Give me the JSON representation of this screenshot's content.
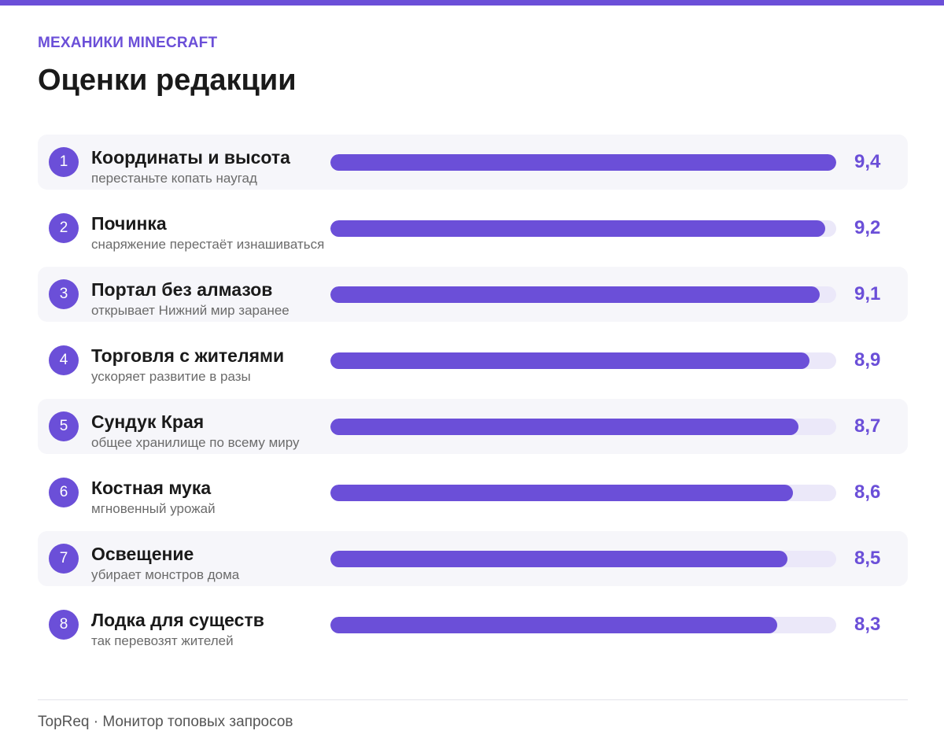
{
  "header": {
    "eyebrow": "МЕХАНИКИ MINECRAFT",
    "title": "Оценки редакции"
  },
  "colors": {
    "accent": "#6b4fd8",
    "track": "#ebe8f9",
    "row_shade": "#f6f6fa"
  },
  "chart_data": {
    "type": "bar",
    "orientation": "horizontal",
    "title": "Оценки редакции",
    "xlim": [
      0,
      9.4
    ],
    "categories": [
      "Координаты и высота",
      "Починка",
      "Портал без алмазов",
      "Торговля с жителями",
      "Сундук Края",
      "Костная мука",
      "Освещение",
      "Лодка для существ"
    ],
    "values": [
      9.4,
      9.2,
      9.1,
      8.9,
      8.7,
      8.6,
      8.5,
      8.3
    ],
    "items": [
      {
        "rank": "1",
        "label": "Координаты и высота",
        "sublabel": "перестаньте копать наугад",
        "value": 9.4,
        "value_label": "9,4"
      },
      {
        "rank": "2",
        "label": "Починка",
        "sublabel": "снаряжение перестаёт изнашиваться",
        "value": 9.2,
        "value_label": "9,2"
      },
      {
        "rank": "3",
        "label": "Портал без алмазов",
        "sublabel": "открывает Нижний мир заранее",
        "value": 9.1,
        "value_label": "9,1"
      },
      {
        "rank": "4",
        "label": "Торговля с жителями",
        "sublabel": "ускоряет развитие в разы",
        "value": 8.9,
        "value_label": "8,9"
      },
      {
        "rank": "5",
        "label": "Сундук Края",
        "sublabel": "общее хранилище по всему миру",
        "value": 8.7,
        "value_label": "8,7"
      },
      {
        "rank": "6",
        "label": "Костная мука",
        "sublabel": "мгновенный урожай",
        "value": 8.6,
        "value_label": "8,6"
      },
      {
        "rank": "7",
        "label": "Освещение",
        "sublabel": "убирает монстров дома",
        "value": 8.5,
        "value_label": "8,5"
      },
      {
        "rank": "8",
        "label": "Лодка для существ",
        "sublabel": "так перевозят жителей",
        "value": 8.3,
        "value_label": "8,3"
      }
    ]
  },
  "footer": {
    "text": "TopReq · Монитор топовых запросов"
  }
}
